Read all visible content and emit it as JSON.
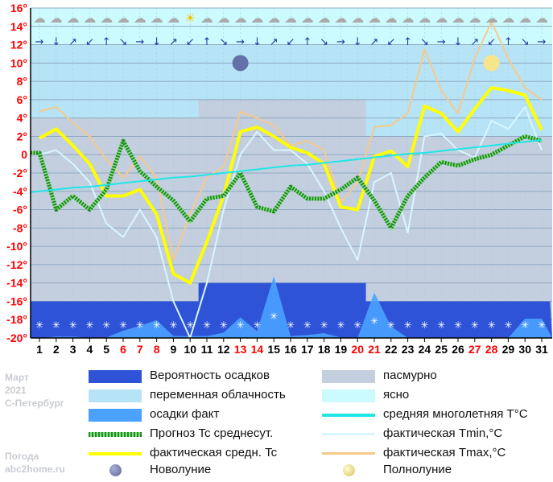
{
  "side_text": {
    "month": "Март",
    "year": "2021",
    "city": "С-Петербург",
    "brand1": "Погода",
    "brand2": "abc2home.ru"
  },
  "legend": {
    "precip_prob": "Вероятность осадков",
    "overcast": "пасмурно",
    "partly": "переменная облачность",
    "clear": "ясно",
    "precip_fact": "осадки факт",
    "avg_long": "средняя многолетняя T°C",
    "forecast": "Прогноз Tc среднесут.",
    "tmin": "фактическая Tmin,°C",
    "tavg": "фактическая средн. Tc",
    "tmax": "фактическая Tmax,°C",
    "new_moon": "Новолуние",
    "full_moon": "Полнолуние"
  },
  "colors": {
    "precip_prob": "#2f53d6",
    "overcast": "#c3cfdf",
    "partly": "#b6e4f6",
    "clear": "#ccfbff",
    "precip_fact": "#4aa1ff",
    "avg_long": "#22e6e6",
    "forecast": "#1f8a1f",
    "tmin": "#d8f6ff",
    "tavg": "#ffff00",
    "tmax": "#f7c98a",
    "axis_red": "#ff0000"
  },
  "chart_data": {
    "type": "line",
    "x": [
      1,
      2,
      3,
      4,
      5,
      6,
      7,
      8,
      9,
      10,
      11,
      12,
      13,
      14,
      15,
      16,
      17,
      18,
      19,
      20,
      21,
      22,
      23,
      24,
      25,
      26,
      27,
      28,
      29,
      30,
      31
    ],
    "x_tick_labels": [
      "1",
      "2",
      "3",
      "4",
      "5",
      "6",
      "7",
      "8",
      "9",
      "10",
      "11",
      "12",
      "13",
      "14",
      "15",
      "16",
      "17",
      "18",
      "19",
      "20",
      "21",
      "22",
      "23",
      "24",
      "25",
      "26",
      "27",
      "28",
      "29",
      "30",
      "31"
    ],
    "red_days": [
      6,
      7,
      8,
      13,
      14,
      20,
      21,
      27,
      28
    ],
    "y_ticks": [
      16,
      14,
      12,
      10,
      8,
      6,
      4,
      2,
      0,
      -2,
      -4,
      -6,
      -8,
      -10,
      -12,
      -14,
      -16,
      -18,
      -20
    ],
    "y_tick_labels": [
      "16°",
      "14°",
      "12°",
      "10°",
      "8°",
      "6°",
      "4°",
      "2°",
      "0",
      "-2°",
      "-4°",
      "-6°",
      "-8°",
      "-10°",
      "-12°",
      "-14°",
      "-16°",
      "-18°",
      "-20°"
    ],
    "ylim": [
      -20,
      16
    ],
    "grid": true,
    "series": [
      {
        "name": "фактическая Tmax,°C",
        "values": [
          4.7,
          5.2,
          3.5,
          2.0,
          -0.5,
          -2.5,
          -0.2,
          -2.5,
          -11.5,
          -6.5,
          -2.5,
          -1.3,
          4.7,
          4.0,
          3.2,
          1.0,
          1.5,
          0.5,
          -5.3,
          -3.0,
          3.0,
          3.2,
          4.5,
          11.5,
          7.0,
          4.5,
          10.5,
          14.5,
          10.5,
          7.3,
          6.0
        ]
      },
      {
        "name": "фактическая Tmin,°C",
        "values": [
          0.0,
          0.5,
          -1.0,
          -3.0,
          -7.5,
          -9.0,
          -6.0,
          -9.0,
          -16.0,
          -20.0,
          -14.0,
          -6.0,
          0.0,
          2.5,
          0.5,
          0.5,
          -1.0,
          -4.0,
          -8.0,
          -11.5,
          -3.0,
          -2.0,
          -8.5,
          2.0,
          2.3,
          0.5,
          -0.3,
          3.7,
          2.8,
          5.2,
          0.5
        ]
      },
      {
        "name": "фактическая средн. Tc",
        "values": [
          1.8,
          2.8,
          1.0,
          -1.0,
          -4.5,
          -4.5,
          -3.8,
          -6.5,
          -13.0,
          -14.0,
          -9.5,
          -4.5,
          2.5,
          3.0,
          2.0,
          0.8,
          0.2,
          -1.0,
          -5.7,
          -6.0,
          -0.2,
          0.4,
          -1.3,
          5.3,
          4.5,
          2.5,
          5.0,
          7.3,
          7.0,
          6.5,
          2.7
        ]
      },
      {
        "name": "Прогноз Tc среднесут.",
        "values": [
          0.2,
          -6.0,
          -4.5,
          -6.0,
          -3.8,
          1.5,
          -1.8,
          -3.5,
          -5.0,
          -7.3,
          -4.8,
          -4.5,
          -2.0,
          -5.7,
          -6.2,
          -3.5,
          -4.8,
          -4.8,
          -3.8,
          -2.5,
          -5.0,
          -8.0,
          -4.5,
          -2.5,
          -0.8,
          -1.2,
          -0.5,
          0.0,
          1.0,
          2.0,
          1.5
        ]
      },
      {
        "name": "средняя многолетняя T°C",
        "values": [
          -4.0,
          -3.8,
          -3.6,
          -3.5,
          -3.3,
          -3.1,
          -2.9,
          -2.7,
          -2.5,
          -2.4,
          -2.2,
          -2.0,
          -1.8,
          -1.6,
          -1.4,
          -1.2,
          -1.1,
          -0.9,
          -0.7,
          -0.5,
          -0.3,
          -0.1,
          0.1,
          0.2,
          0.4,
          0.6,
          0.8,
          1.0,
          1.2,
          1.4,
          1.6
        ]
      }
    ],
    "precip_fact_mm": [
      0,
      0.3,
      0.3,
      0,
      0.1,
      1.5,
      2.5,
      3.7,
      0.4,
      0.4,
      0.4,
      1.1,
      4.3,
      1.4,
      12.8,
      0.4,
      0.6,
      1.0,
      0.1,
      0,
      9.4,
      2.4,
      0,
      0,
      0,
      0,
      0,
      0,
      0,
      4.0,
      4.0
    ],
    "precip_probability_band_top": [
      -16,
      -16,
      -16,
      -16,
      -16,
      -16,
      -16,
      -16,
      -16,
      -16,
      -14,
      -14,
      -14,
      -14,
      -14,
      -14,
      -14,
      -14,
      -14,
      -14,
      -16,
      -16,
      -16,
      -16,
      -16,
      -16,
      -16,
      -16,
      -16,
      -16,
      -16
    ],
    "snow_days": [
      1,
      2,
      3,
      4,
      5,
      6,
      7,
      8,
      9,
      10,
      11,
      12,
      13,
      14,
      15,
      16,
      17,
      18,
      19,
      20,
      21,
      22,
      23,
      24,
      25,
      26,
      27,
      28,
      29,
      30,
      31
    ],
    "new_moon_day": 13,
    "full_moon_day": 28
  }
}
